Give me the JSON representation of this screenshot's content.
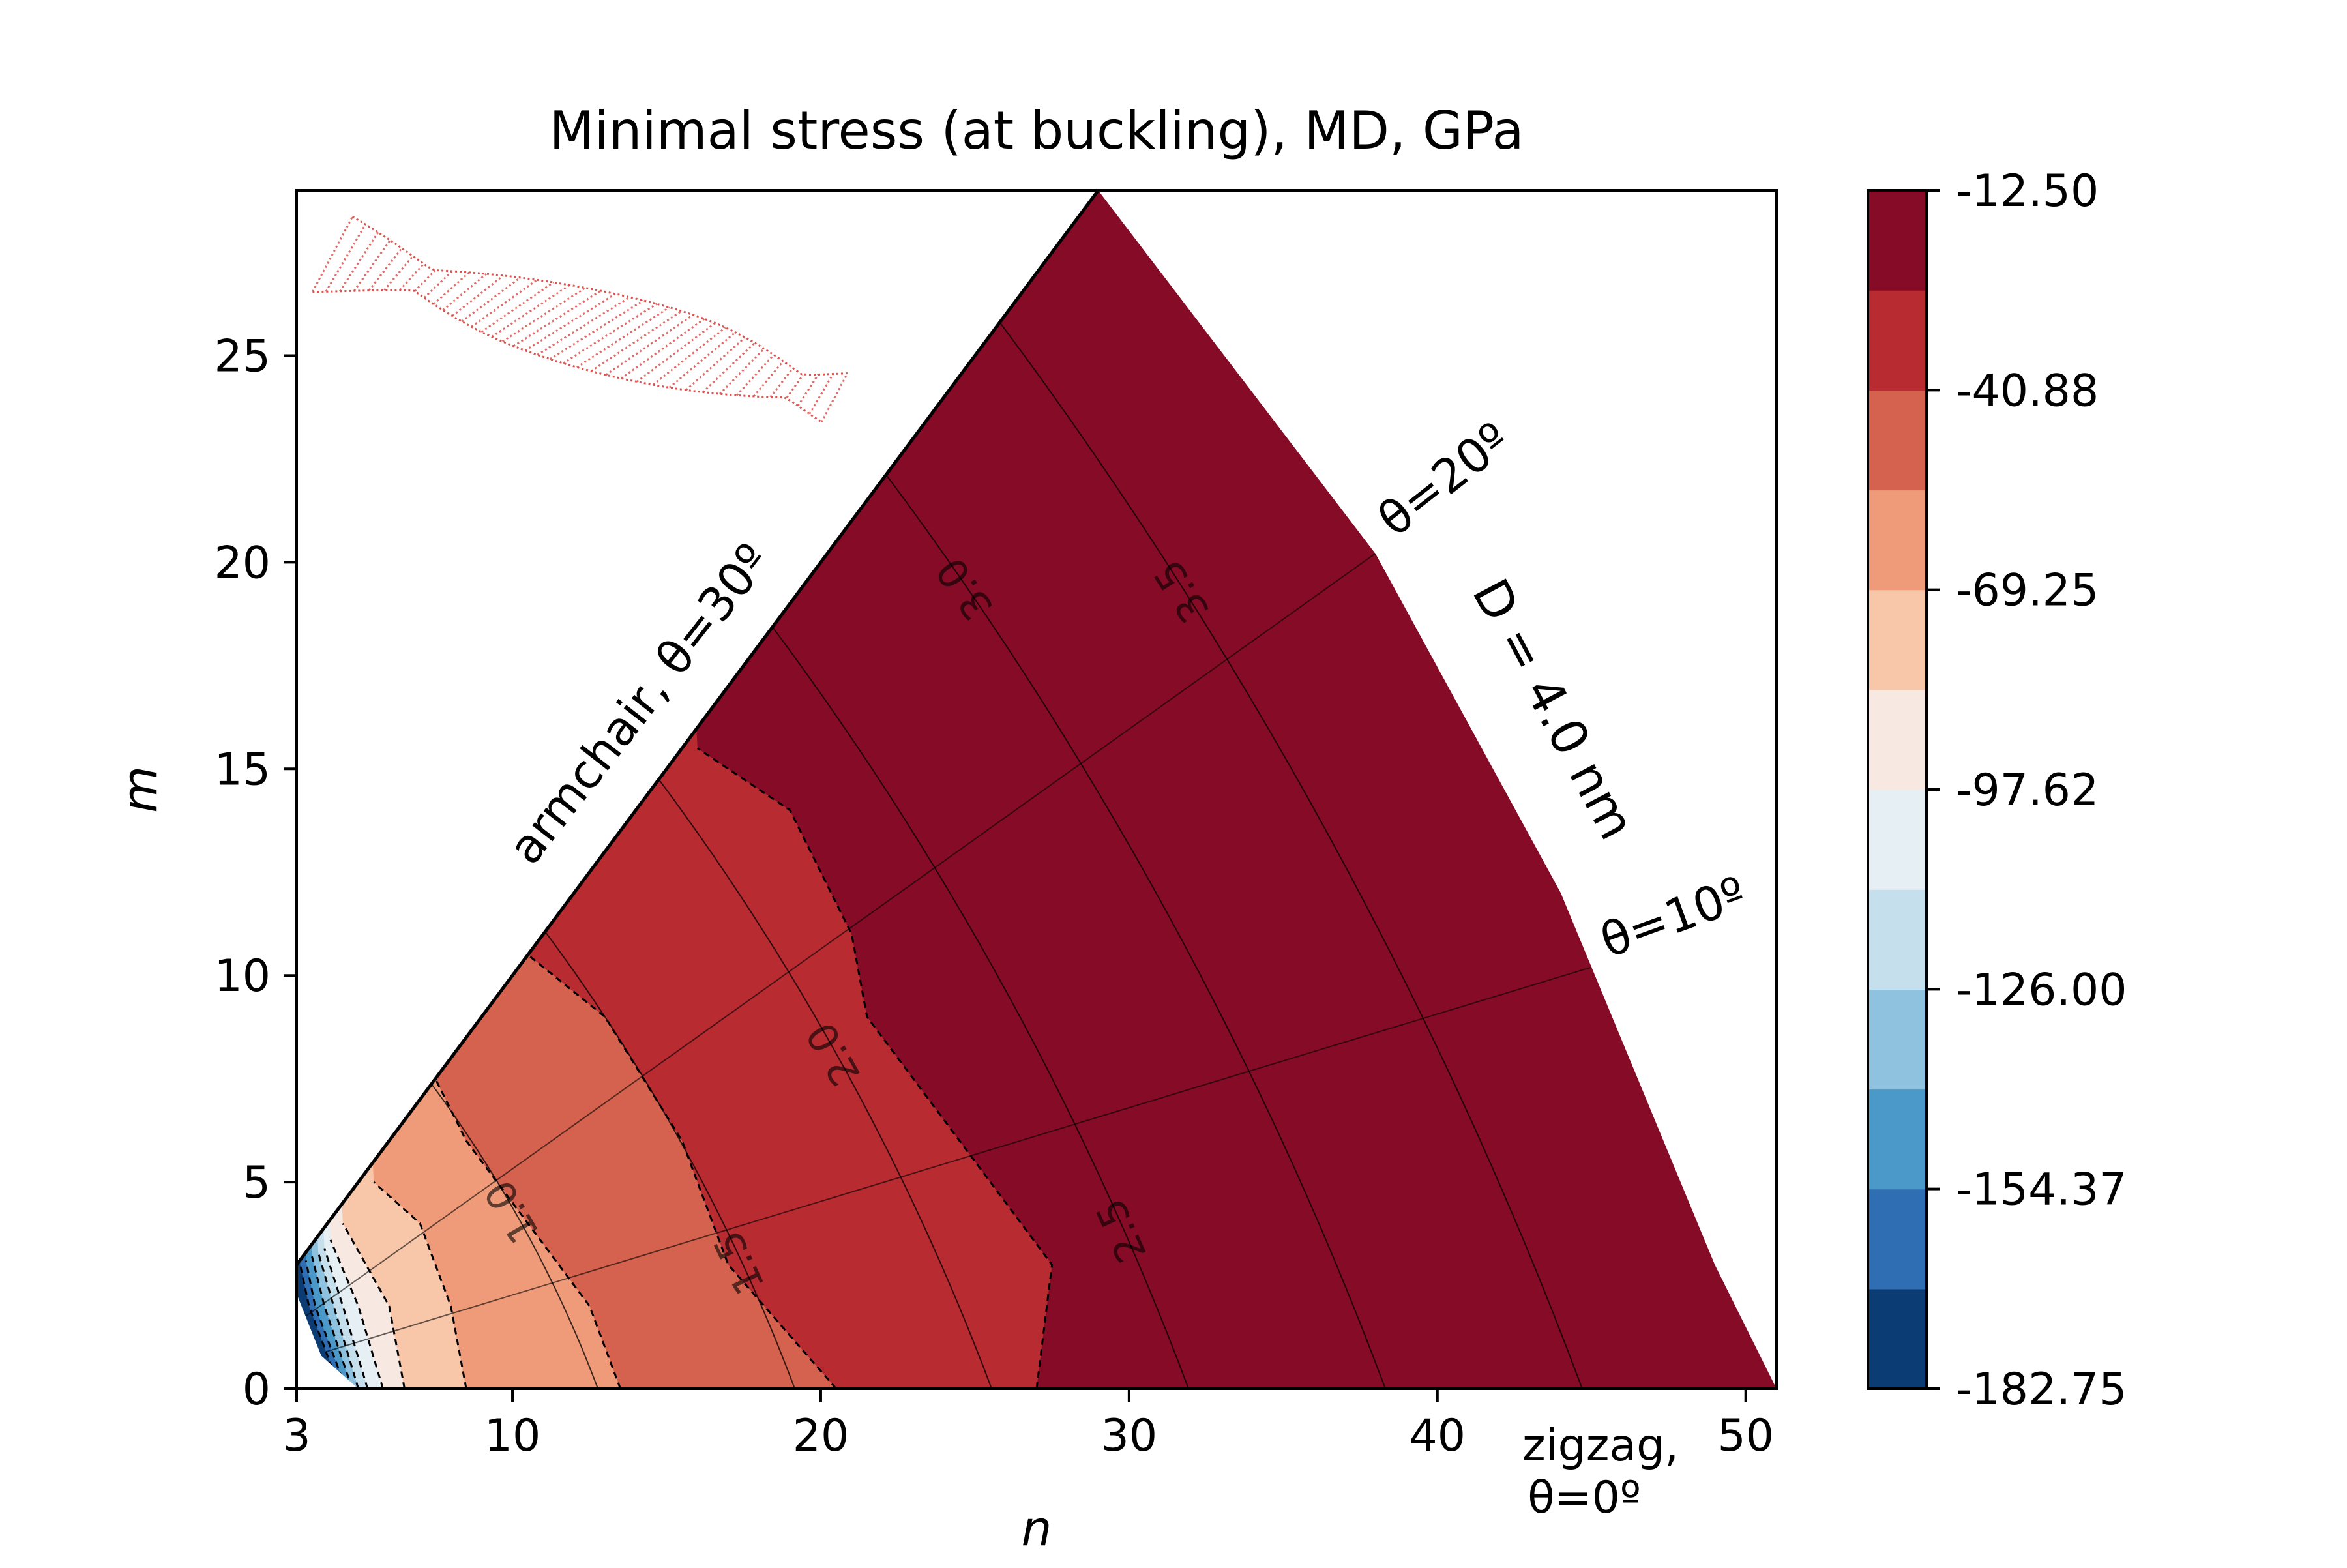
{
  "chart_data": {
    "type": "heatmap",
    "title": "Minimal stress (at buckling), MD, GPa",
    "xlabel": "n",
    "ylabel": "m",
    "xlim": [
      3,
      51
    ],
    "ylim": [
      0,
      29
    ],
    "xticks": [
      3,
      10,
      20,
      30,
      40,
      50
    ],
    "yticks": [
      0,
      5,
      10,
      15,
      20,
      25
    ],
    "colorbar": {
      "ticks": [
        "-12.50",
        "-40.88",
        "-69.25",
        "-97.62",
        "-126.00",
        "-154.37",
        "-182.75"
      ],
      "min": -182.75,
      "max": -12.5,
      "levels": 13,
      "colors": [
        "#0b3d74",
        "#2f6eb2",
        "#4a99c9",
        "#8fc2de",
        "#c5dfec",
        "#e6eff4",
        "#f8e8e2",
        "#f8c7aa",
        "#ef9b79",
        "#d5624e",
        "#b72b31",
        "#860b26"
      ]
    },
    "line_annotations": [
      "armchair, θ=30º",
      "θ=20º",
      "θ=10º",
      "zigzag,",
      "θ=0º"
    ],
    "diameter_annotation": "D = 4.0 nm",
    "diameter_contours": [
      {
        "label": "1.0",
        "d": 1.0
      },
      {
        "label": "1.5",
        "d": 1.5
      },
      {
        "label": "2.0",
        "d": 2.0
      },
      {
        "label": "2.5",
        "d": 2.5
      },
      {
        "label": "3.0",
        "d": 3.0
      },
      {
        "label": "3.5",
        "d": 3.5
      }
    ],
    "angle_lines": [
      10,
      20
    ],
    "stress_bands": [
      {
        "level_index": 11,
        "boundary_n_at_m": [
          [
            0,
            27
          ],
          [
            3,
            27.5
          ],
          [
            6,
            24.5
          ],
          [
            9,
            21.5
          ],
          [
            11,
            21
          ],
          [
            14,
            19
          ],
          [
            15.5,
            16
          ]
        ]
      },
      {
        "level_index": 10,
        "boundary_n_at_m": [
          [
            0,
            20.5
          ],
          [
            3,
            17
          ],
          [
            6,
            15.5
          ],
          [
            9,
            13
          ],
          [
            10.5,
            10.5
          ]
        ]
      },
      {
        "level_index": 9,
        "boundary_n_at_m": [
          [
            0,
            13.5
          ],
          [
            2,
            12.5
          ],
          [
            4,
            10.5
          ],
          [
            6,
            8.5
          ],
          [
            7.5,
            7.5
          ]
        ]
      },
      {
        "level_index": 8,
        "boundary_n_at_m": [
          [
            0,
            8.5
          ],
          [
            2,
            8
          ],
          [
            4,
            7
          ],
          [
            5,
            5.5
          ]
        ]
      },
      {
        "level_index": 7,
        "boundary_n_at_m": [
          [
            0,
            6.5
          ],
          [
            2,
            6
          ],
          [
            4,
            4.5
          ]
        ]
      },
      {
        "level_index": 6,
        "boundary_n_at_m": [
          [
            0,
            5.8
          ],
          [
            2,
            5
          ],
          [
            3.6,
            4.1
          ]
        ]
      },
      {
        "level_index": 5,
        "boundary_n_at_m": [
          [
            0,
            5.3
          ],
          [
            2,
            4.5
          ],
          [
            3.4,
            3.9
          ]
        ]
      },
      {
        "level_index": 4,
        "boundary_n_at_m": [
          [
            0,
            5
          ],
          [
            2,
            4.2
          ],
          [
            3.3,
            3.7
          ]
        ]
      },
      {
        "level_index": 3,
        "boundary_n_at_m": [
          [
            0,
            4.8
          ],
          [
            2,
            3.9
          ],
          [
            3.2,
            3.5
          ]
        ]
      },
      {
        "level_index": 2,
        "boundary_n_at_m": [
          [
            0,
            4.6
          ],
          [
            2,
            3.6
          ],
          [
            3.1,
            3.3
          ]
        ]
      },
      {
        "level_index": 1,
        "boundary_n_at_m": [
          [
            0,
            4.4
          ],
          [
            2,
            3.4
          ],
          [
            3.05,
            3.1
          ]
        ]
      }
    ]
  },
  "inset": {
    "description_icon": "twisted-nanotube-icon",
    "color": "#d9534f"
  }
}
